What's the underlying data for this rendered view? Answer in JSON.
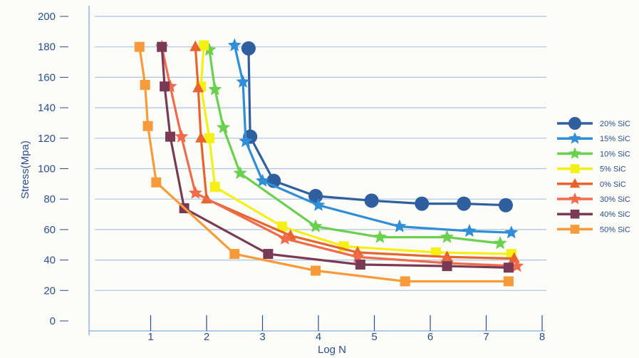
{
  "chart_data": {
    "type": "line",
    "xlabel": "Log N",
    "ylabel": "Stress(Mpa)",
    "xlim": [
      0,
      8
    ],
    "ylim": [
      0,
      200
    ],
    "x_ticks": [
      "1",
      "2",
      "3",
      "4",
      "5",
      "6",
      "7",
      "8"
    ],
    "y_ticks": [
      "0",
      "20",
      "40",
      "60",
      "80",
      "100",
      "120",
      "140",
      "160",
      "180",
      "200"
    ],
    "grid": "horizontal",
    "legend_position": "right",
    "series": [
      {
        "name": "20% SiC",
        "color": "#2f5f9e",
        "marker": "circle",
        "points": [
          [
            2.75,
            179
          ],
          [
            2.78,
            121
          ],
          [
            3.2,
            92
          ],
          [
            3.95,
            82
          ],
          [
            4.95,
            79
          ],
          [
            5.85,
            77
          ],
          [
            6.6,
            77
          ],
          [
            7.35,
            76
          ]
        ]
      },
      {
        "name": "15% SiC",
        "color": "#2f8ed6",
        "marker": "star",
        "points": [
          [
            2.5,
            181
          ],
          [
            2.65,
            157
          ],
          [
            2.7,
            118
          ],
          [
            3.0,
            92
          ],
          [
            4.0,
            76
          ],
          [
            5.45,
            62
          ],
          [
            6.7,
            59
          ],
          [
            7.45,
            58
          ]
        ]
      },
      {
        "name": "10% SiC",
        "color": "#6ad04e",
        "marker": "star",
        "points": [
          [
            2.05,
            178
          ],
          [
            2.15,
            152
          ],
          [
            2.3,
            127
          ],
          [
            2.6,
            97
          ],
          [
            3.95,
            62
          ],
          [
            5.1,
            55
          ],
          [
            6.3,
            55
          ],
          [
            7.25,
            51
          ]
        ]
      },
      {
        "name": "5% SiC",
        "color": "#f4f014",
        "marker": "square",
        "points": [
          [
            1.95,
            181
          ],
          [
            1.9,
            154
          ],
          [
            2.05,
            120
          ],
          [
            2.15,
            88
          ],
          [
            3.35,
            62
          ],
          [
            4.45,
            49
          ],
          [
            6.1,
            45
          ],
          [
            7.45,
            44
          ]
        ]
      },
      {
        "name": "0% SiC",
        "color": "#e8642e",
        "marker": "triangle",
        "points": [
          [
            1.8,
            180
          ],
          [
            1.85,
            153
          ],
          [
            1.9,
            120
          ],
          [
            2.0,
            80
          ],
          [
            3.5,
            56
          ],
          [
            4.7,
            45
          ],
          [
            6.3,
            42
          ],
          [
            7.5,
            41
          ]
        ]
      },
      {
        "name": "30% SiC",
        "color": "#ef6b4a",
        "marker": "star",
        "points": [
          [
            1.2,
            180
          ],
          [
            1.35,
            154
          ],
          [
            1.55,
            121
          ],
          [
            1.8,
            84
          ],
          [
            3.4,
            54
          ],
          [
            4.7,
            42
          ],
          [
            6.3,
            38
          ],
          [
            7.55,
            36
          ]
        ]
      },
      {
        "name": "40% SiC",
        "color": "#7a3a55",
        "marker": "square",
        "points": [
          [
            1.2,
            180
          ],
          [
            1.25,
            154
          ],
          [
            1.35,
            121
          ],
          [
            1.6,
            74
          ],
          [
            3.1,
            44
          ],
          [
            4.75,
            37
          ],
          [
            6.3,
            36
          ],
          [
            7.4,
            35
          ]
        ]
      },
      {
        "name": "50% SiC",
        "color": "#f79a3a",
        "marker": "square",
        "points": [
          [
            0.8,
            180
          ],
          [
            0.9,
            155
          ],
          [
            0.95,
            128
          ],
          [
            1.1,
            91
          ],
          [
            2.5,
            44
          ],
          [
            3.95,
            33
          ],
          [
            5.55,
            26
          ],
          [
            7.4,
            26
          ]
        ]
      }
    ]
  }
}
